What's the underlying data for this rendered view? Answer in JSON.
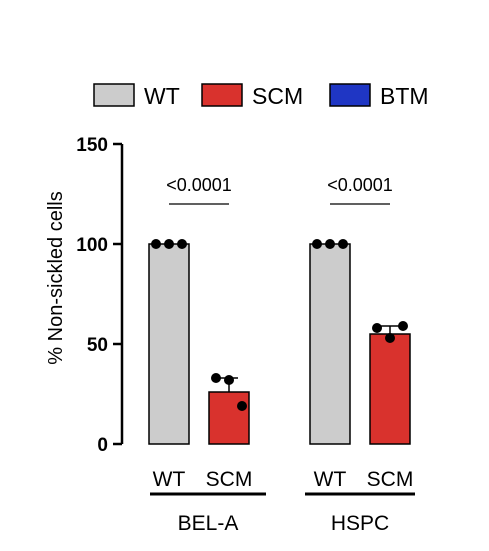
{
  "chart_data": {
    "type": "bar",
    "ylabel": "% Non-sickled cells",
    "ylim": [
      0,
      150
    ],
    "yticks": [
      0,
      50,
      100,
      150
    ],
    "legend": {
      "placement": "top",
      "entries": [
        {
          "name": "WT",
          "color": "#cccccc"
        },
        {
          "name": "SCM",
          "color": "#d9322d"
        },
        {
          "name": "BTM",
          "color": "#1f36c4"
        }
      ]
    },
    "groups": [
      {
        "name": "BEL-A",
        "bars": [
          {
            "category": "WT",
            "series": "WT",
            "value": 100,
            "points": [
              100,
              100,
              100
            ]
          },
          {
            "category": "SCM",
            "series": "SCM",
            "value": 26,
            "error": 7,
            "points": [
              33,
              32,
              19
            ]
          }
        ],
        "pvalue": "<0.0001"
      },
      {
        "name": "HSPC",
        "bars": [
          {
            "category": "WT",
            "series": "WT",
            "value": 100,
            "points": [
              100,
              100,
              100
            ]
          },
          {
            "category": "SCM",
            "series": "SCM",
            "value": 55,
            "error": 4,
            "points": [
              58,
              53,
              59
            ]
          }
        ],
        "pvalue": "<0.0001"
      }
    ]
  }
}
